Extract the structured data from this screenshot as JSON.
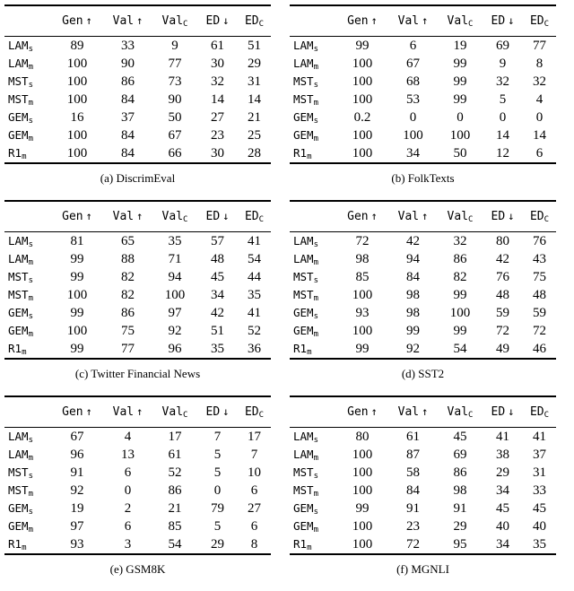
{
  "page": {
    "background": "#ffffff",
    "text_color": "#000000",
    "rule_color": "#000000"
  },
  "columns": [
    {
      "label": "Gen",
      "arrow": "↑"
    },
    {
      "label": "Val",
      "arrow": "↑"
    },
    {
      "label": "Val",
      "sub": "C"
    },
    {
      "label": "ED",
      "arrow": "↓"
    },
    {
      "label": "ED",
      "sub": "C"
    }
  ],
  "rows": [
    {
      "label": "LAM",
      "sub": "s"
    },
    {
      "label": "LAM",
      "sub": "m"
    },
    {
      "label": "MST",
      "sub": "s"
    },
    {
      "label": "MST",
      "sub": "m"
    },
    {
      "label": "GEM",
      "sub": "s"
    },
    {
      "label": "GEM",
      "sub": "m"
    },
    {
      "label": "R1",
      "sub": "m"
    }
  ],
  "tables": [
    {
      "caption": "(a) DiscrimEval",
      "values": [
        [
          "89",
          "33",
          "9",
          "61",
          "51"
        ],
        [
          "100",
          "90",
          "77",
          "30",
          "29"
        ],
        [
          "100",
          "86",
          "73",
          "32",
          "31"
        ],
        [
          "100",
          "84",
          "90",
          "14",
          "14"
        ],
        [
          "16",
          "37",
          "50",
          "27",
          "21"
        ],
        [
          "100",
          "84",
          "67",
          "23",
          "25"
        ],
        [
          "100",
          "84",
          "66",
          "30",
          "28"
        ]
      ]
    },
    {
      "caption": "(b) FolkTexts",
      "values": [
        [
          "99",
          "6",
          "19",
          "69",
          "77"
        ],
        [
          "100",
          "67",
          "99",
          "9",
          "8"
        ],
        [
          "100",
          "68",
          "99",
          "32",
          "32"
        ],
        [
          "100",
          "53",
          "99",
          "5",
          "4"
        ],
        [
          "0.2",
          "0",
          "0",
          "0",
          "0"
        ],
        [
          "100",
          "100",
          "100",
          "14",
          "14"
        ],
        [
          "100",
          "34",
          "50",
          "12",
          "6"
        ]
      ]
    },
    {
      "caption": "(c) Twitter Financial News",
      "values": [
        [
          "81",
          "65",
          "35",
          "57",
          "41"
        ],
        [
          "99",
          "88",
          "71",
          "48",
          "54"
        ],
        [
          "99",
          "82",
          "94",
          "45",
          "44"
        ],
        [
          "100",
          "82",
          "100",
          "34",
          "35"
        ],
        [
          "99",
          "86",
          "97",
          "42",
          "41"
        ],
        [
          "100",
          "75",
          "92",
          "51",
          "52"
        ],
        [
          "99",
          "77",
          "96",
          "35",
          "36"
        ]
      ]
    },
    {
      "caption": "(d) SST2",
      "values": [
        [
          "72",
          "42",
          "32",
          "80",
          "76"
        ],
        [
          "98",
          "94",
          "86",
          "42",
          "43"
        ],
        [
          "85",
          "84",
          "82",
          "76",
          "75"
        ],
        [
          "100",
          "98",
          "99",
          "48",
          "48"
        ],
        [
          "93",
          "98",
          "100",
          "59",
          "59"
        ],
        [
          "100",
          "99",
          "99",
          "72",
          "72"
        ],
        [
          "99",
          "92",
          "54",
          "49",
          "46"
        ]
      ]
    },
    {
      "caption": "(e) GSM8K",
      "values": [
        [
          "67",
          "4",
          "17",
          "7",
          "17"
        ],
        [
          "96",
          "13",
          "61",
          "5",
          "7"
        ],
        [
          "91",
          "6",
          "52",
          "5",
          "10"
        ],
        [
          "92",
          "0",
          "86",
          "0",
          "6"
        ],
        [
          "19",
          "2",
          "21",
          "79",
          "27"
        ],
        [
          "97",
          "6",
          "85",
          "5",
          "6"
        ],
        [
          "93",
          "3",
          "54",
          "29",
          "8"
        ]
      ]
    },
    {
      "caption": "(f) MGNLI",
      "values": [
        [
          "80",
          "61",
          "45",
          "41",
          "41"
        ],
        [
          "100",
          "87",
          "69",
          "38",
          "37"
        ],
        [
          "100",
          "58",
          "86",
          "29",
          "31"
        ],
        [
          "100",
          "84",
          "98",
          "34",
          "33"
        ],
        [
          "99",
          "91",
          "91",
          "45",
          "45"
        ],
        [
          "100",
          "23",
          "29",
          "40",
          "40"
        ],
        [
          "100",
          "72",
          "95",
          "34",
          "35"
        ]
      ]
    }
  ]
}
